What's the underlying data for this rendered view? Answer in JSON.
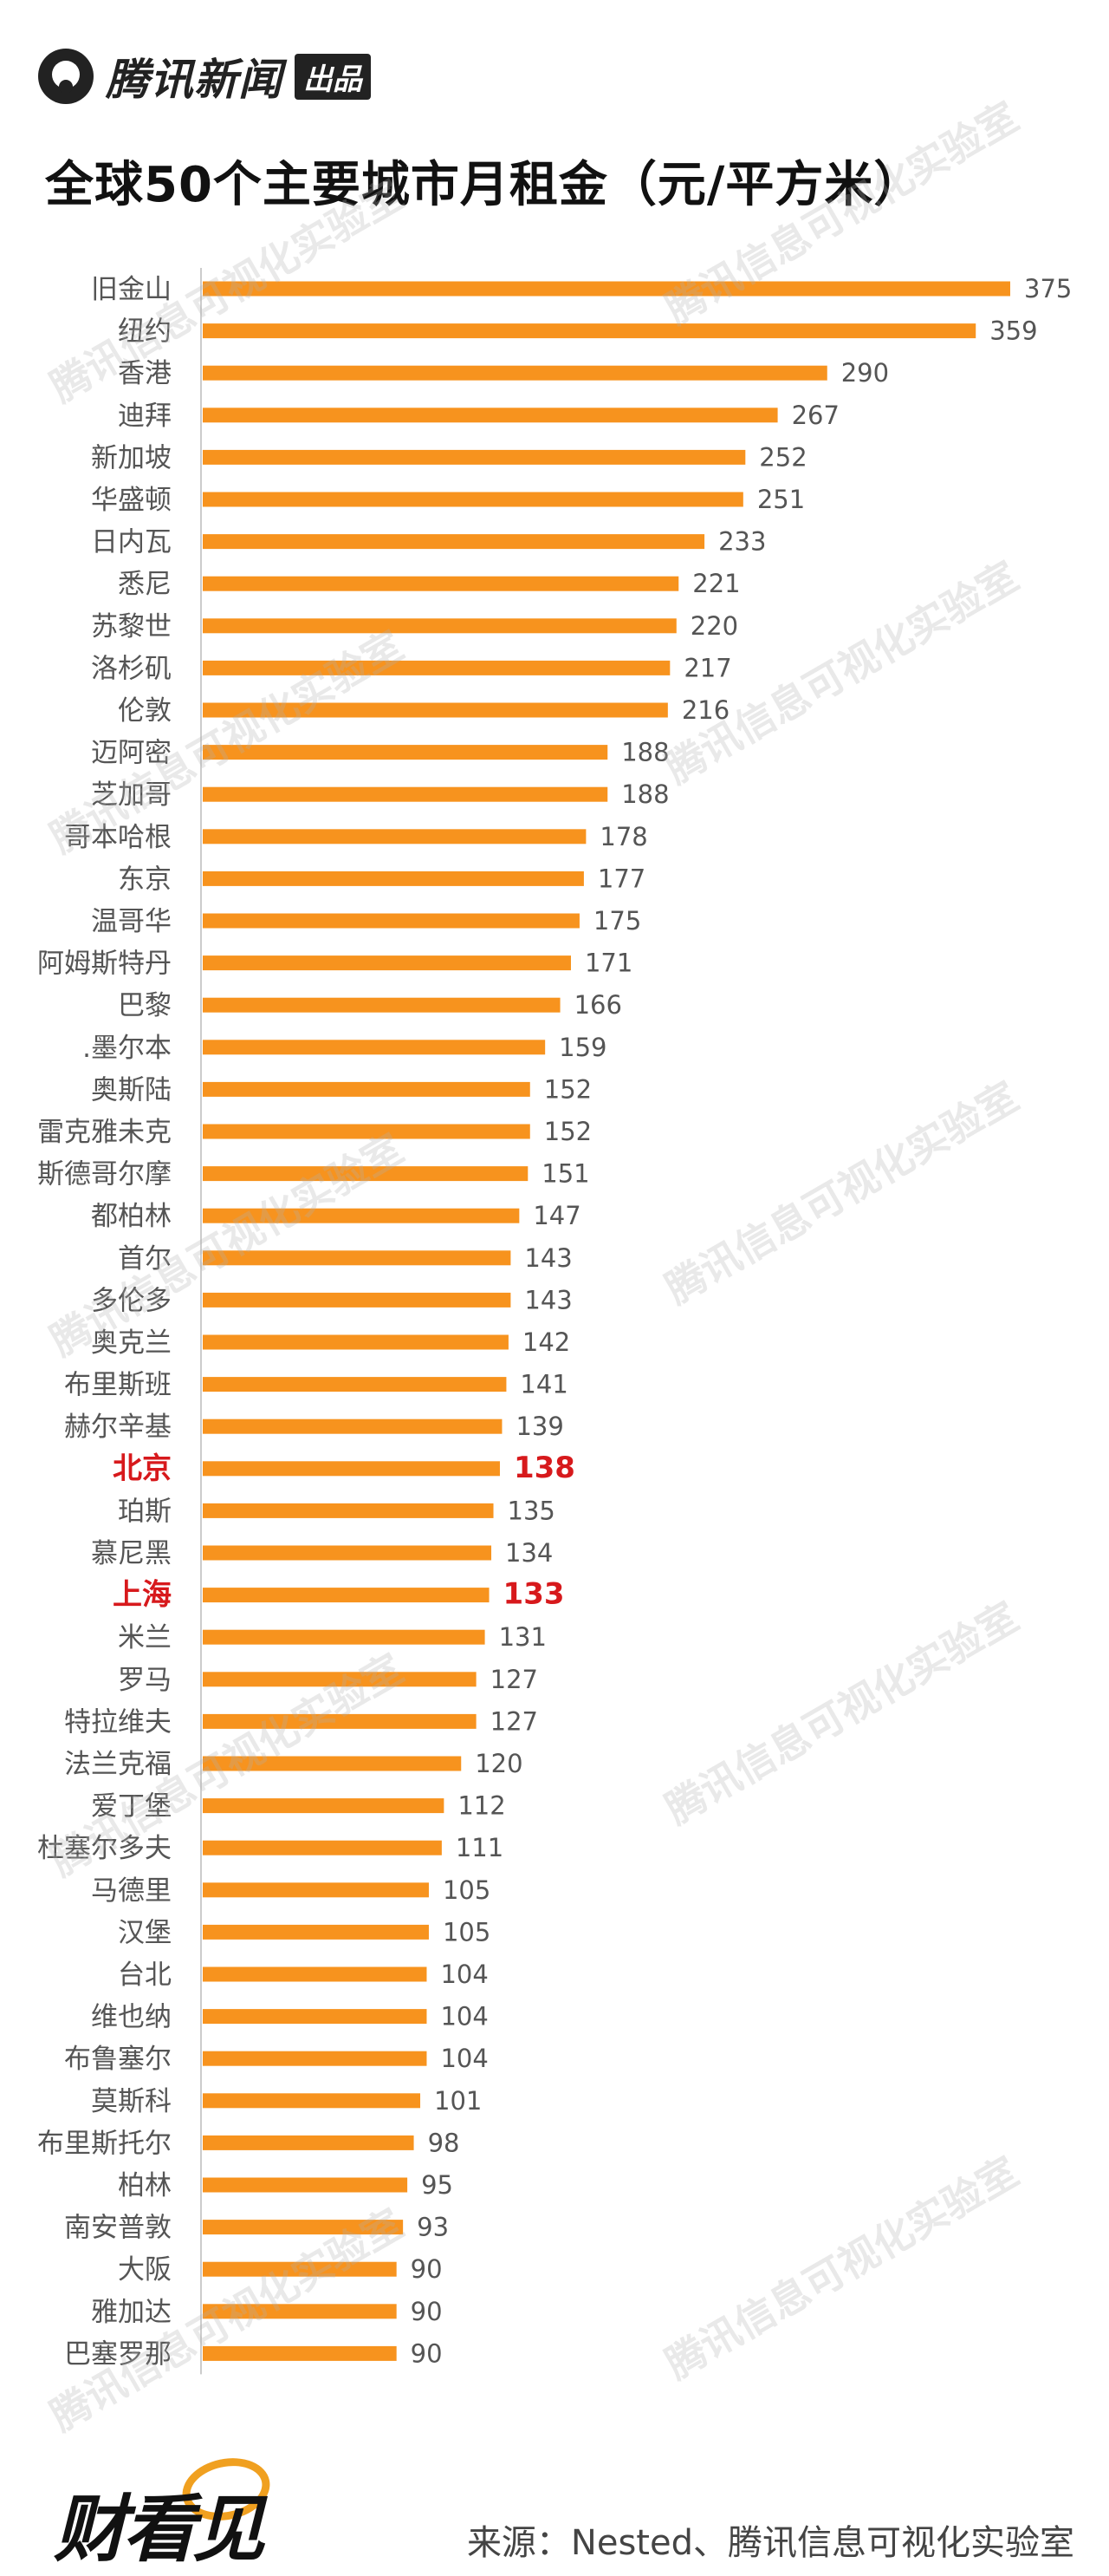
{
  "brand": {
    "logo_text": "腾讯新闻",
    "logo_badge": "出品"
  },
  "title": "全球50个主要城市月租金（元/平方米）",
  "watermark_text": "腾讯信息可视化实验室",
  "footer": {
    "logo_text": "财看见",
    "source": "来源：Nested、腾讯信息可视化实验室"
  },
  "colors": {
    "bar": "#f7931e",
    "label": "#555555",
    "highlight": "#d7191c",
    "axis": "#cccccc"
  },
  "chart_data": {
    "type": "bar",
    "orientation": "horizontal",
    "title": "全球50个主要城市月租金（元/平方米）",
    "xlim": [
      0,
      375
    ],
    "grid": false,
    "highlighted": [
      "北京",
      "上海"
    ],
    "categories": [
      "旧金山",
      "纽约",
      "香港",
      "迪拜",
      "新加坡",
      "华盛顿",
      "日内瓦",
      "悉尼",
      "苏黎世",
      "洛杉矶",
      "伦敦",
      "迈阿密",
      "芝加哥",
      "哥本哈根",
      "东京",
      "温哥华",
      "阿姆斯特丹",
      "巴黎",
      ".墨尔本",
      "奥斯陆",
      "雷克雅未克",
      "斯德哥尔摩",
      "都柏林",
      "首尔",
      "多伦多",
      "奥克兰",
      "布里斯班",
      "赫尔辛基",
      "北京",
      "珀斯",
      "慕尼黑",
      "上海",
      "米兰",
      "罗马",
      "特拉维夫",
      "法兰克福",
      "爱丁堡",
      "杜塞尔多夫",
      "马德里",
      "汉堡",
      "台北",
      "维也纳",
      "布鲁塞尔",
      "莫斯科",
      "布里斯托尔",
      "柏林",
      "南安普敦",
      "大阪",
      "雅加达",
      "巴塞罗那"
    ],
    "values": [
      375,
      359,
      290,
      267,
      252,
      251,
      233,
      221,
      220,
      217,
      216,
      188,
      188,
      178,
      177,
      175,
      171,
      166,
      159,
      152,
      152,
      151,
      147,
      143,
      143,
      142,
      141,
      139,
      138,
      135,
      134,
      133,
      131,
      127,
      127,
      120,
      112,
      111,
      105,
      105,
      104,
      104,
      104,
      101,
      98,
      95,
      93,
      90,
      90,
      90
    ]
  }
}
